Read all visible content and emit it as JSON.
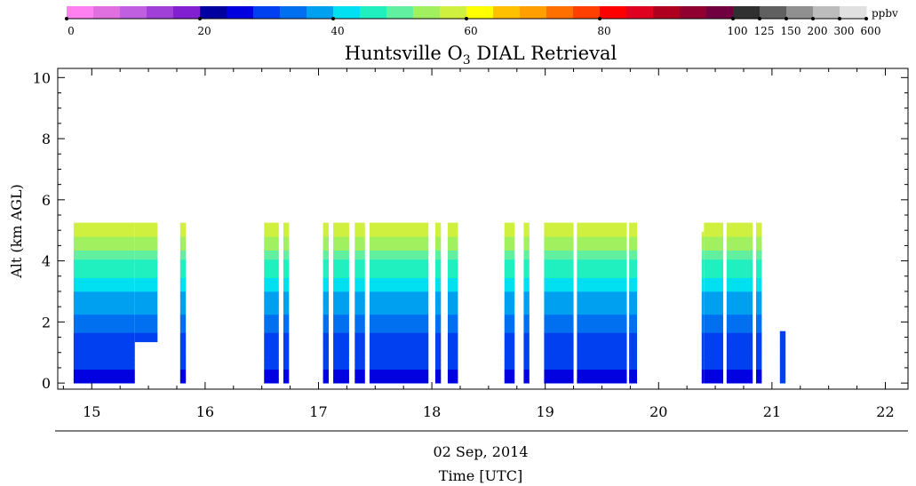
{
  "chart_data": {
    "type": "heatmap",
    "title": "Huntsville O",
    "title_sub": "3",
    "title_tail": " DIAL Retrieval",
    "ylabel": "Alt (km AGL)",
    "xlabel_date": "02 Sep, 2014",
    "xlabel": "Time [UTC]",
    "xlim": [
      14.7,
      22.2
    ],
    "ylim": [
      -0.2,
      10.3
    ],
    "x_ticks": [
      "15",
      "16",
      "17",
      "18",
      "19",
      "20",
      "21",
      "22"
    ],
    "y_ticks": [
      "0",
      "2",
      "4",
      "6",
      "8",
      "10"
    ],
    "colorbar": {
      "unit": "ppbv",
      "tick_labels": [
        "0",
        "20",
        "40",
        "60",
        "80",
        "100",
        "125",
        "150",
        "200",
        "300",
        "600"
      ],
      "colors": [
        "#ff80f0",
        "#e070e0",
        "#c060e0",
        "#a040d8",
        "#8020d0",
        "#0000a0",
        "#0000e0",
        "#0040f0",
        "#0070f0",
        "#00a0f0",
        "#00e0f0",
        "#20f0c0",
        "#60f0a0",
        "#a0f060",
        "#d0f040",
        "#ffff00",
        "#ffc000",
        "#ffa000",
        "#ff7000",
        "#ff4000",
        "#ff0000",
        "#e00020",
        "#b00020",
        "#900030",
        "#700040",
        "#303030",
        "#606060",
        "#909090",
        "#bcbcbc",
        "#e0e0e0"
      ]
    },
    "profile_top_km": 5.25,
    "segments": [
      [
        14.84,
        15.38
      ],
      [
        15.38,
        15.58
      ],
      [
        15.78,
        15.83
      ],
      [
        16.52,
        16.65
      ],
      [
        16.69,
        16.74
      ],
      [
        17.04,
        17.09
      ],
      [
        17.13,
        17.27
      ],
      [
        17.32,
        17.41
      ],
      [
        17.45,
        17.97
      ],
      [
        18.03,
        18.08
      ],
      [
        18.14,
        18.23
      ],
      [
        18.64,
        18.73
      ],
      [
        18.81,
        18.86
      ],
      [
        18.99,
        19.25
      ],
      [
        19.28,
        19.72
      ],
      [
        19.74,
        19.81
      ],
      [
        20.38,
        20.4
      ],
      [
        20.4,
        20.57
      ],
      [
        20.6,
        20.83
      ],
      [
        20.86,
        20.91
      ],
      [
        21.07,
        21.12
      ]
    ]
  }
}
